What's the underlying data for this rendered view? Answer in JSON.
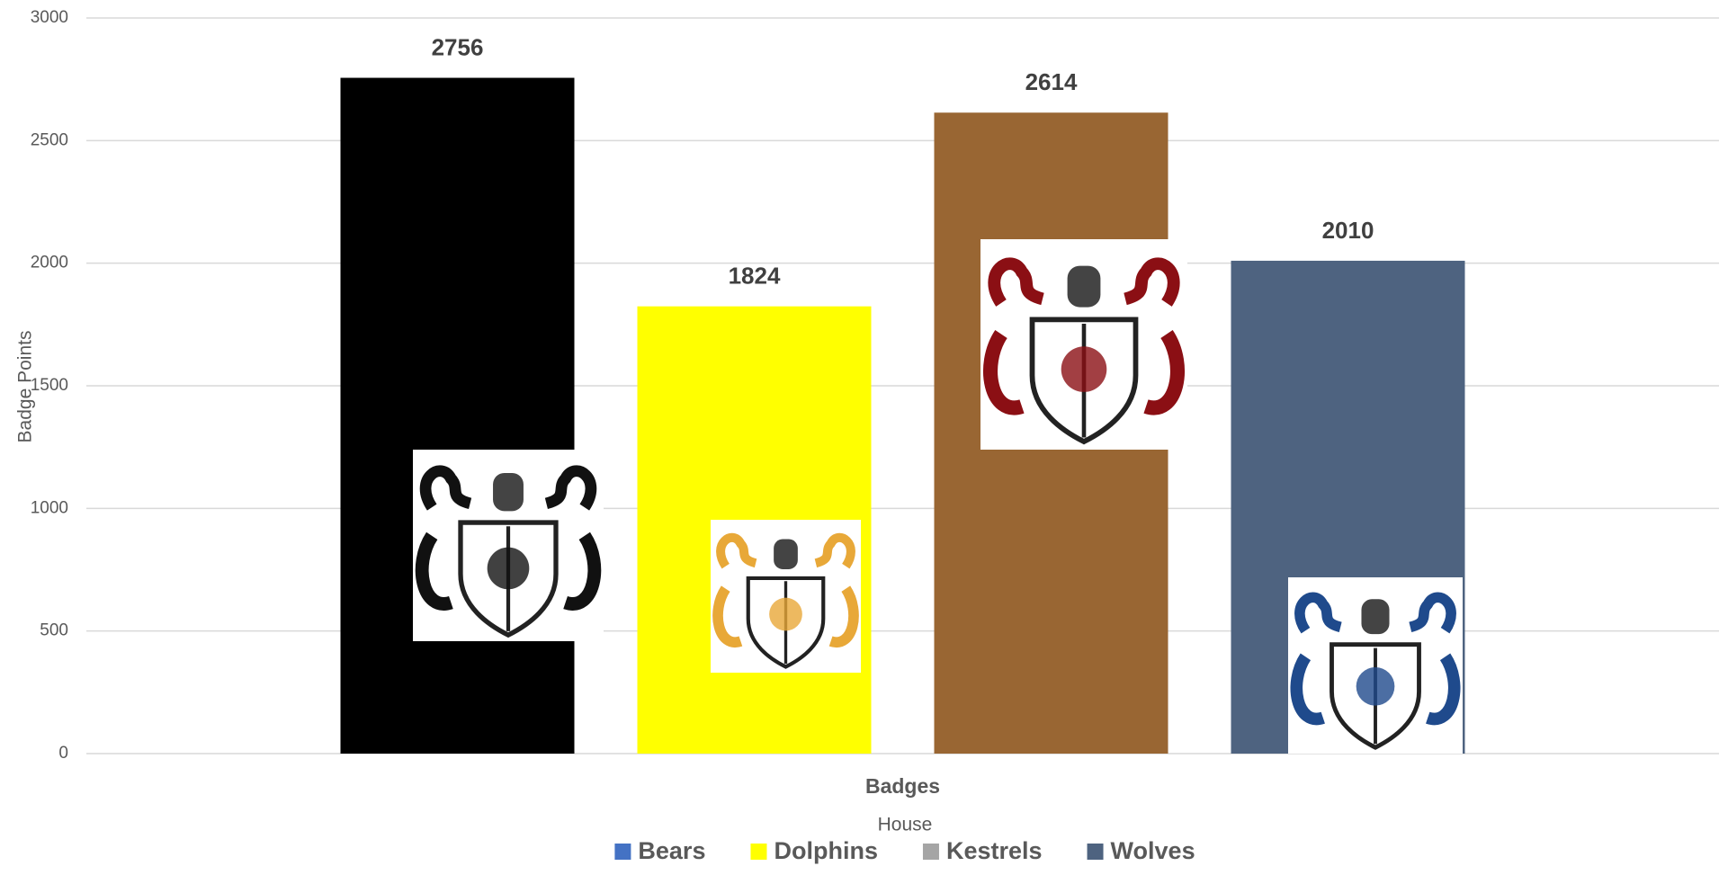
{
  "chart_data": {
    "type": "bar",
    "categories": [
      "Badges"
    ],
    "series": [
      {
        "name": "Bears",
        "color": "#4472c4",
        "bar_color": "#000000",
        "values": [
          2756
        ]
      },
      {
        "name": "Dolphins",
        "color": "#ffff00",
        "bar_color": "#ffff00",
        "values": [
          1824
        ]
      },
      {
        "name": "Kestrels",
        "color": "#a5a5a5",
        "bar_color": "#996633",
        "values": [
          2614
        ]
      },
      {
        "name": "Wolves",
        "color": "#4e6380",
        "bar_color": "#4e6380",
        "values": [
          2010
        ]
      }
    ],
    "ylim": [
      0,
      3000
    ],
    "yticks": [
      0,
      500,
      1000,
      1500,
      2000,
      2500,
      3000
    ],
    "grid": true,
    "x_label": "House",
    "y_label": "Badge Points",
    "legend": "bottom"
  }
}
